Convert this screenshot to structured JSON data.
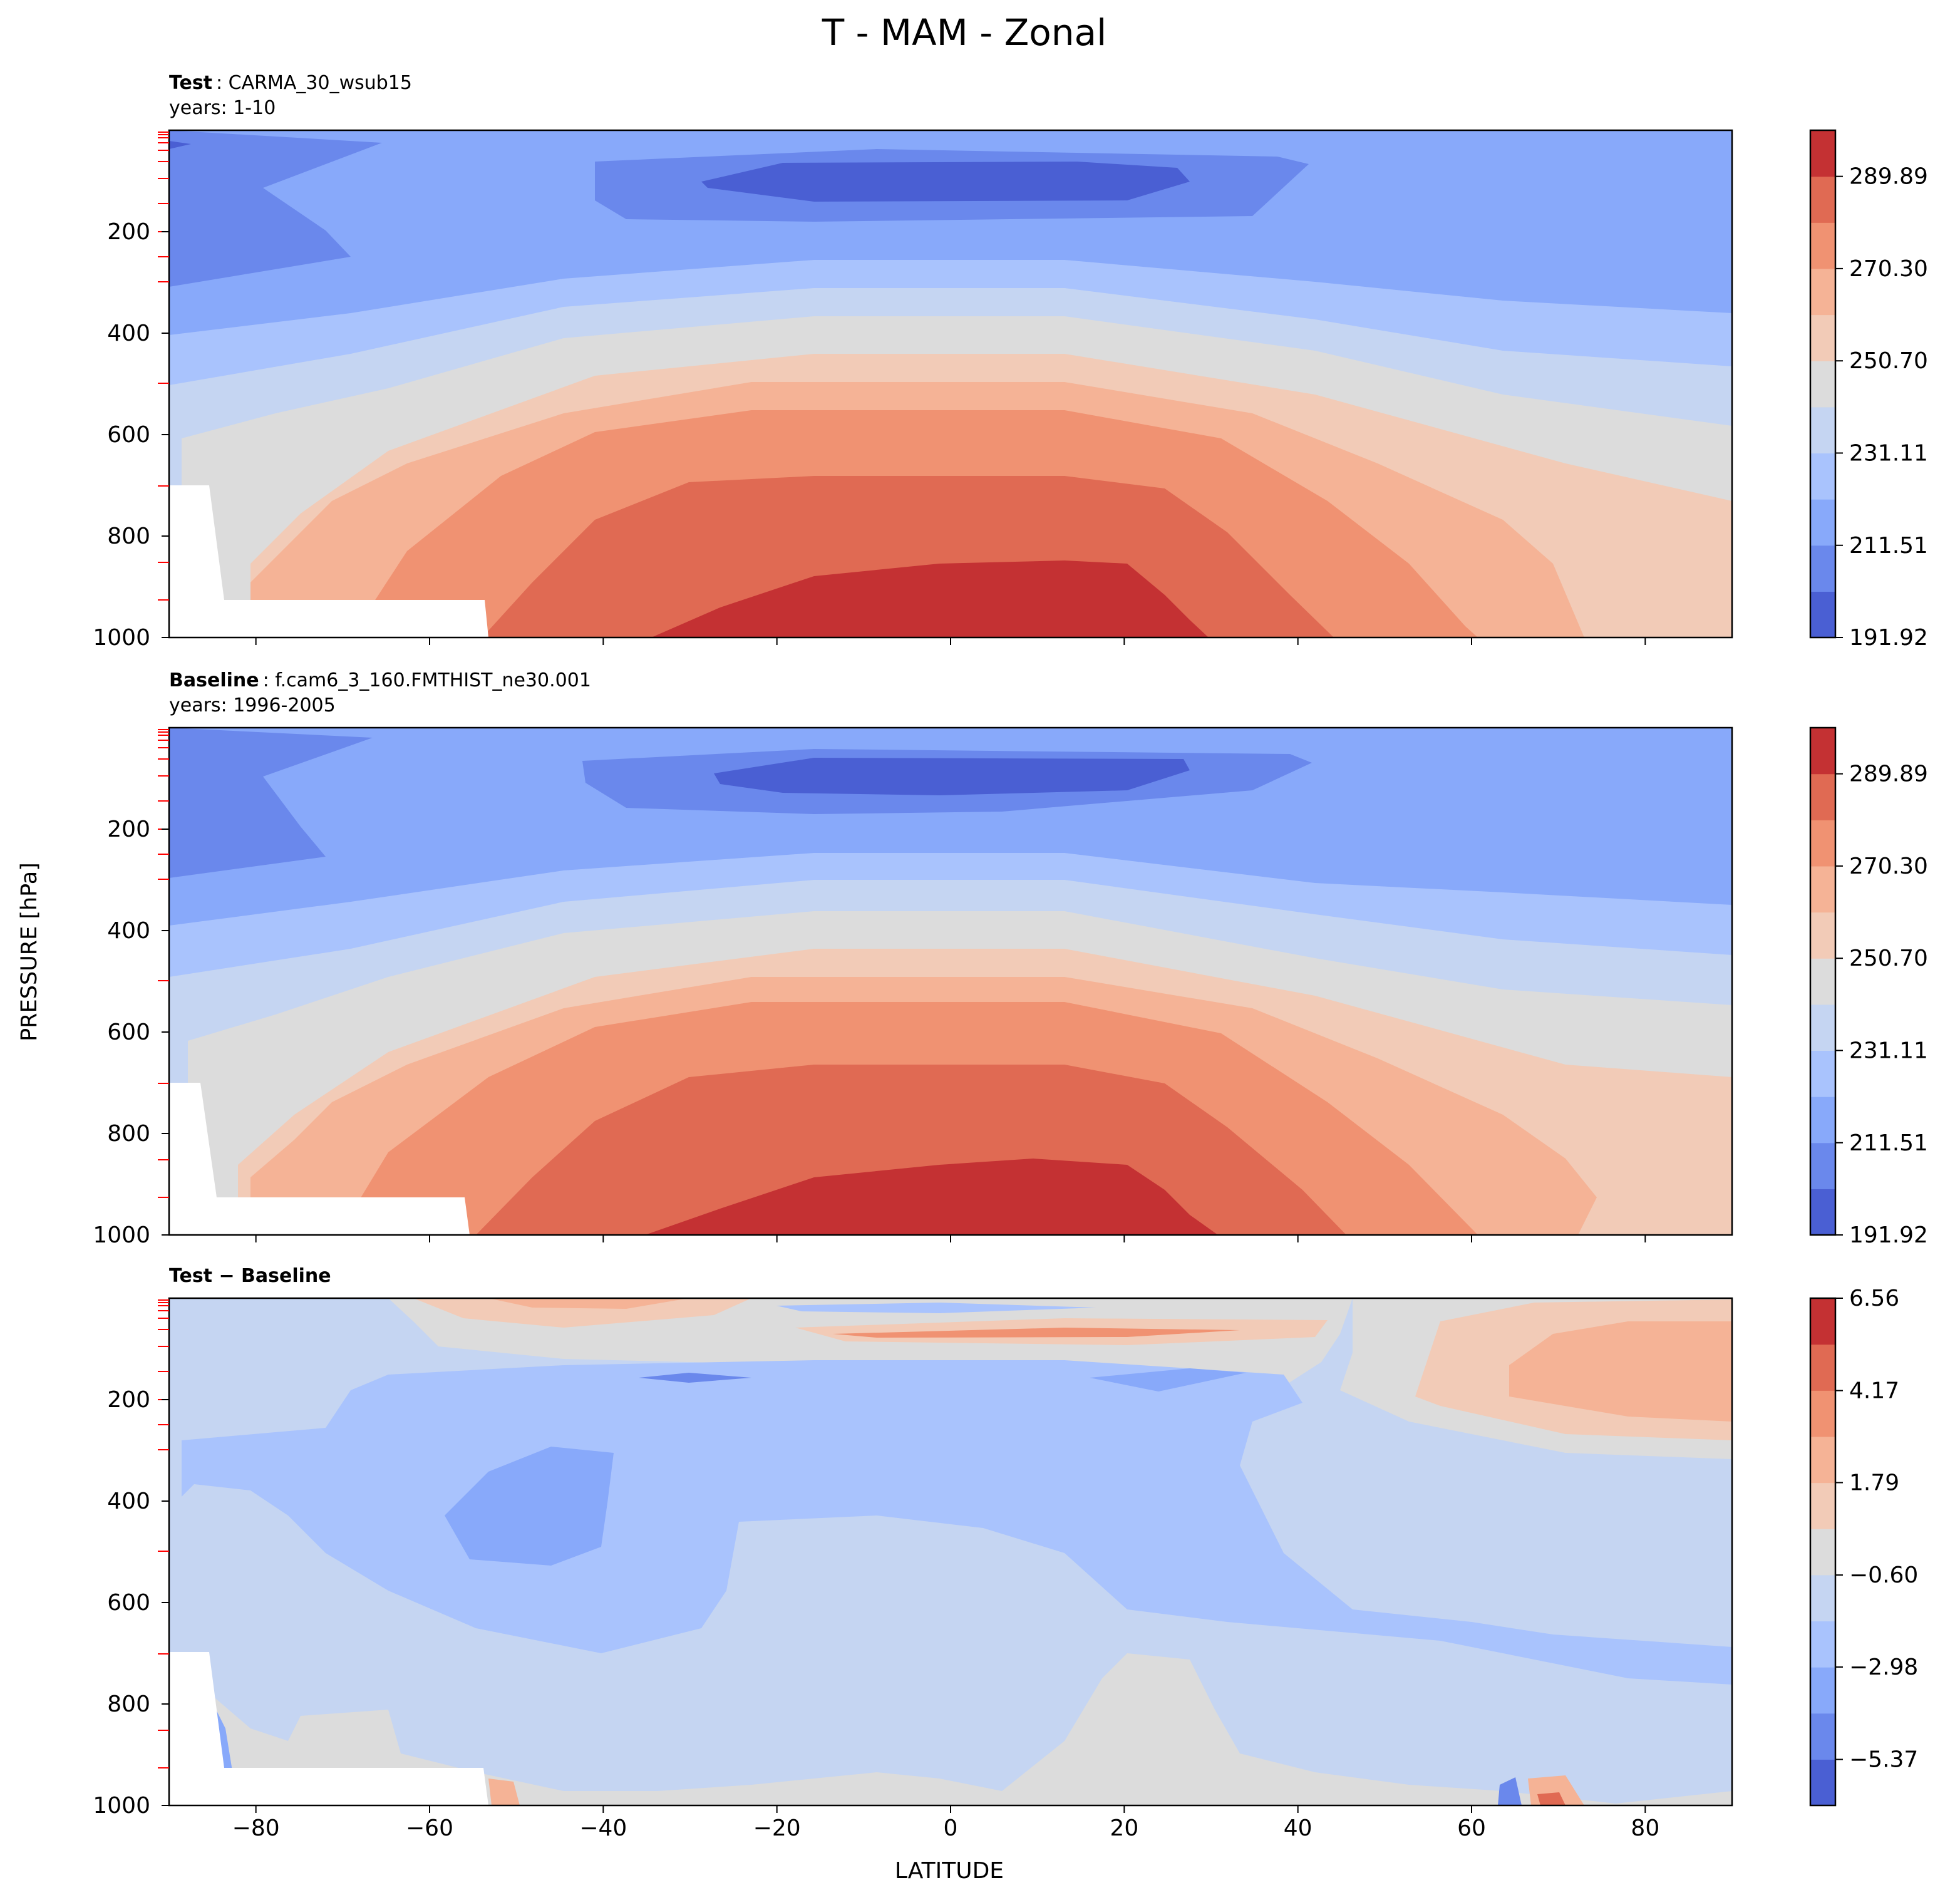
{
  "figure": {
    "title": "T - MAM - Zonal",
    "xlabel": "LATITUDE",
    "ylabel": "PRESSURE [hPa]"
  },
  "chart_data": [
    {
      "type": "heatmap",
      "name": "test",
      "title_bold": "Test",
      "title_text": ": CARMA_30_wsub15",
      "subtitle": "years: 1-10",
      "xlim": [
        -90,
        90
      ],
      "ylim": [
        1000,
        0
      ],
      "xticks": [
        "−80",
        "−60",
        "−40",
        "−20",
        "0",
        "20",
        "40",
        "60",
        "80"
      ],
      "xtick_values": [
        -80,
        -60,
        -40,
        -20,
        0,
        20,
        40,
        60,
        80
      ],
      "yticks": [
        "200",
        "400",
        "600",
        "800",
        "1000"
      ],
      "ytick_values": [
        200,
        400,
        600,
        800,
        1000
      ],
      "colorbar_ticks": [
        "289.89",
        "270.30",
        "250.70",
        "231.11",
        "211.51",
        "191.92"
      ],
      "colorbar_tick_values": [
        289.89,
        270.3,
        250.7,
        231.11,
        211.51,
        191.92
      ],
      "colorbar_range": [
        191.92,
        299.69
      ]
    },
    {
      "type": "heatmap",
      "name": "baseline",
      "title_bold": "Baseline",
      "title_text": ": f.cam6_3_160.FMTHIST_ne30.001",
      "subtitle": "years: 1996-2005",
      "xlim": [
        -90,
        90
      ],
      "ylim": [
        1000,
        0
      ],
      "xticks": [
        "−80",
        "−60",
        "−40",
        "−20",
        "0",
        "20",
        "40",
        "60",
        "80"
      ],
      "xtick_values": [
        -80,
        -60,
        -40,
        -20,
        0,
        20,
        40,
        60,
        80
      ],
      "yticks": [
        "200",
        "400",
        "600",
        "800",
        "1000"
      ],
      "ytick_values": [
        200,
        400,
        600,
        800,
        1000
      ],
      "colorbar_ticks": [
        "289.89",
        "270.30",
        "250.70",
        "231.11",
        "211.51",
        "191.92"
      ],
      "colorbar_tick_values": [
        289.89,
        270.3,
        250.7,
        231.11,
        211.51,
        191.92
      ],
      "colorbar_range": [
        191.92,
        299.69
      ]
    },
    {
      "type": "heatmap",
      "name": "diff",
      "title_bold": "Test − Baseline",
      "title_text": "",
      "subtitle": "",
      "xlim": [
        -90,
        90
      ],
      "ylim": [
        1000,
        0
      ],
      "xticks": [
        "−80",
        "−60",
        "−40",
        "−20",
        "0",
        "20",
        "40",
        "60",
        "80"
      ],
      "xtick_values": [
        -80,
        -60,
        -40,
        -20,
        0,
        20,
        40,
        60,
        80
      ],
      "yticks": [
        "200",
        "400",
        "600",
        "800",
        "1000"
      ],
      "ytick_values": [
        200,
        400,
        600,
        800,
        1000
      ],
      "colorbar_ticks": [
        "6.56",
        "4.17",
        "1.79",
        "−0.60",
        "−2.98",
        "−5.37"
      ],
      "colorbar_tick_values": [
        6.56,
        4.17,
        1.79,
        -0.6,
        -2.98,
        -5.37
      ],
      "colorbar_range": [
        -6.56,
        6.56
      ]
    }
  ],
  "colors": {
    "cmap": [
      "#4a5fd3",
      "#6a88ec",
      "#88a9fa",
      "#a9c3fd",
      "#c5d5f2",
      "#dcdcdc",
      "#f2cbb7",
      "#f5b396",
      "#f09272",
      "#e06a53",
      "#c43133"
    ],
    "frame": "#000000",
    "level_tick": "#ff0000"
  }
}
